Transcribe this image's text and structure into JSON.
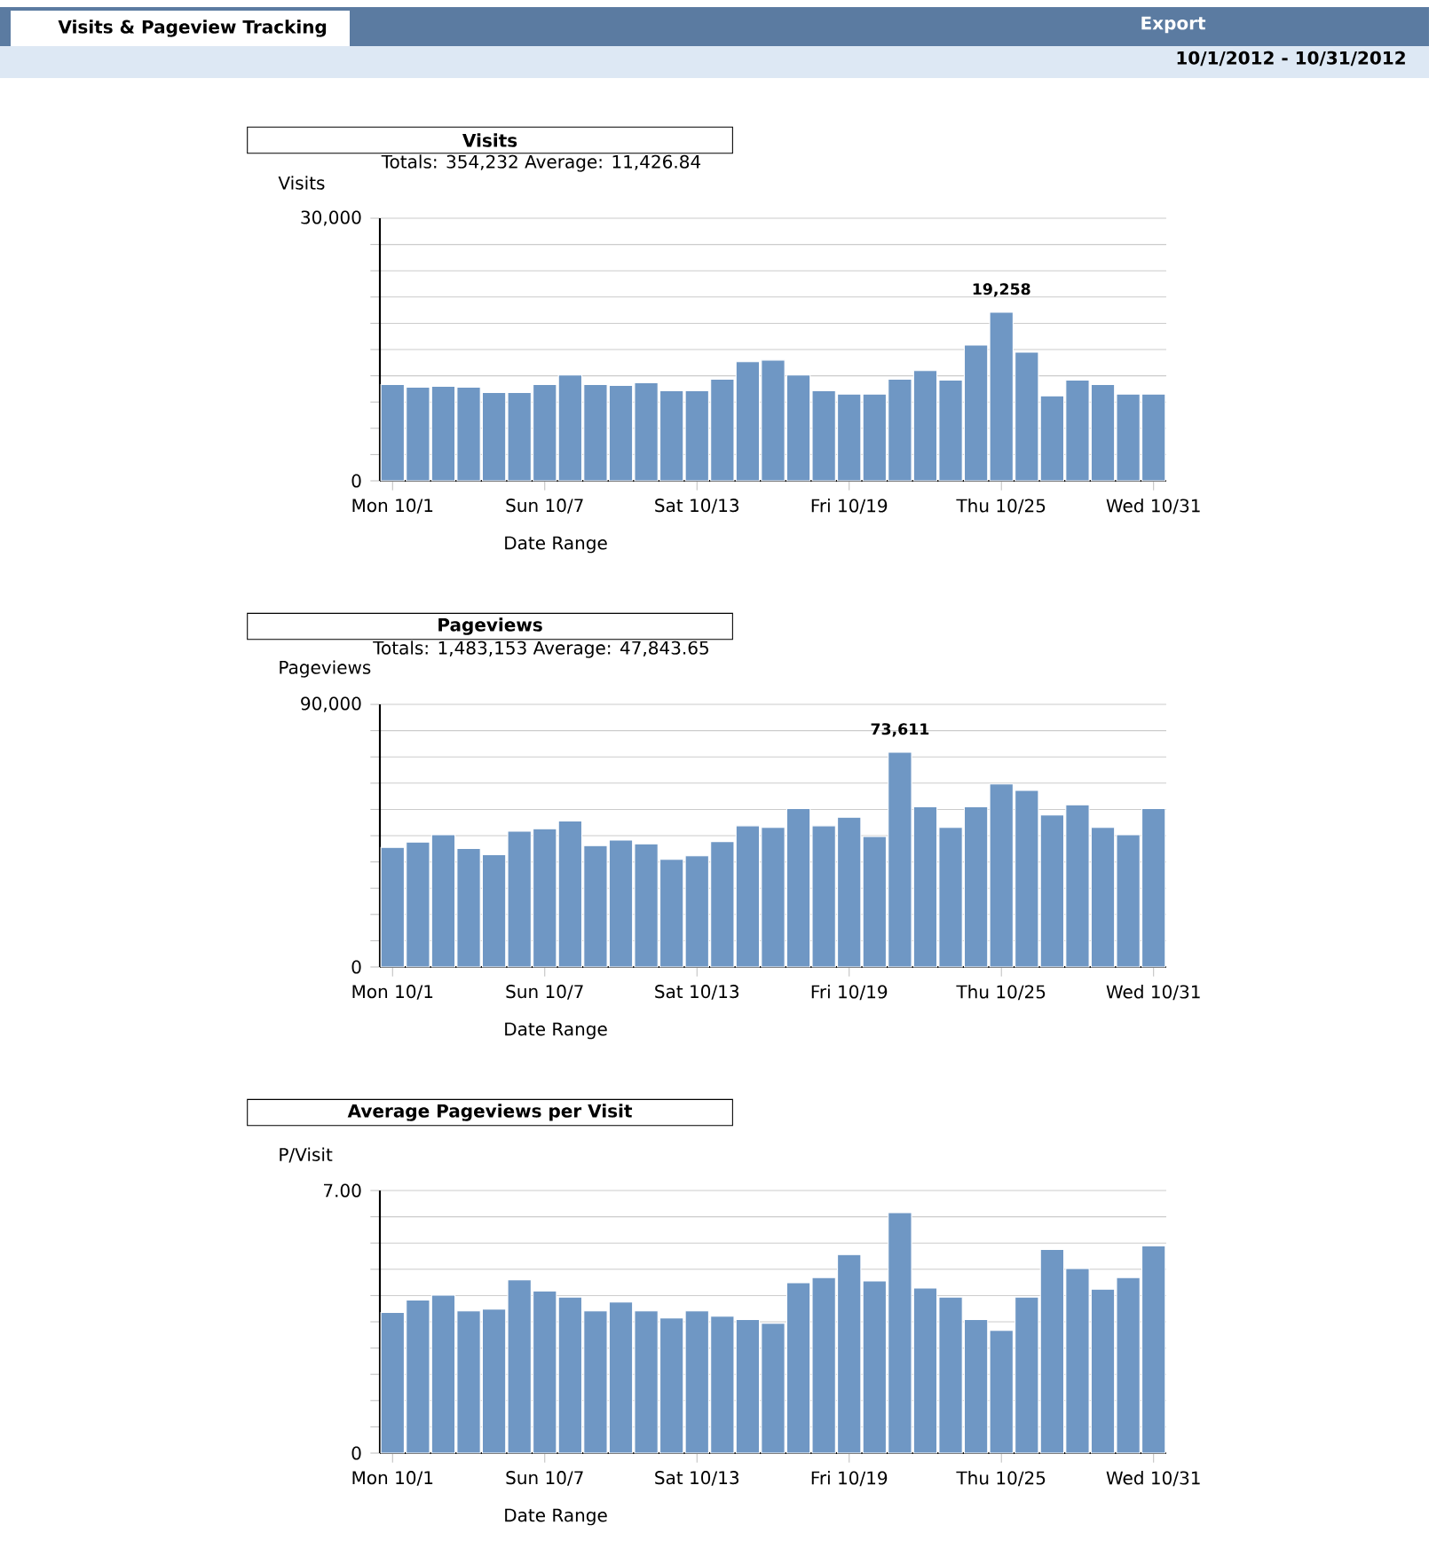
{
  "chart_data": [
    {
      "type": "other",
      "title": "Visits & Pageview Tracking",
      "annotations": [
        "Export",
        "10/1/2012 - 10/31/2012"
      ]
    },
    {
      "type": "bar",
      "title": "Visits",
      "subtitle": "Totals: 354,232   Average: 11,426.84",
      "ylabel": "Visits",
      "xlabel": "Date Range",
      "color": "#6f97c4",
      "grid": "y",
      "categories": [
        "Mon 10/1",
        null,
        null,
        null,
        null,
        null,
        "Sun 10/7",
        null,
        null,
        null,
        null,
        null,
        "Sat 10/13",
        null,
        null,
        null,
        null,
        null,
        "Fri 10/19",
        null,
        null,
        null,
        null,
        null,
        "Thu 10/25",
        null,
        null,
        null,
        null,
        null,
        "Wed 10/31"
      ],
      "values": [
        11000,
        10700,
        10800,
        10700,
        10100,
        10100,
        11000,
        12100,
        11000,
        10900,
        11200,
        10300,
        10300,
        11600,
        13600,
        13800,
        12100,
        10300,
        9900,
        9900,
        11600,
        12600,
        11500,
        15500,
        19258,
        14700,
        9700,
        11500,
        11000,
        9900,
        9900
      ],
      "value_labels": [
        null,
        null,
        null,
        null,
        null,
        null,
        null,
        null,
        null,
        null,
        null,
        null,
        null,
        null,
        null,
        null,
        null,
        null,
        null,
        null,
        null,
        null,
        null,
        null,
        "19,258",
        null,
        null,
        null,
        null,
        null,
        null
      ],
      "ylim": [
        0,
        30000
      ],
      "yticks": [
        0,
        {
          "value": 3000,
          "label": null
        },
        {
          "value": 6000,
          "label": null
        },
        {
          "value": 9000,
          "label": null
        },
        {
          "value": 12000,
          "label": null
        },
        {
          "value": 15000,
          "label": null
        },
        {
          "value": 18000,
          "label": null
        },
        {
          "value": 21000,
          "label": null
        },
        {
          "value": 24000,
          "label": null
        },
        {
          "value": 27000,
          "label": null
        },
        {
          "value": 30000,
          "label": "30,000"
        }
      ]
    },
    {
      "type": "bar",
      "title": "Pageviews",
      "subtitle": "Totals: 1,483,153   Average: 47,843.65",
      "ylabel": "Pageviews",
      "xlabel": "Date Range",
      "color": "#6f97c4",
      "grid": "y",
      "categories": [
        "Mon 10/1",
        null,
        null,
        null,
        null,
        null,
        "Sun 10/7",
        null,
        null,
        null,
        null,
        null,
        "Sat 10/13",
        null,
        null,
        null,
        null,
        null,
        "Fri 10/19",
        null,
        null,
        null,
        null,
        null,
        "Thu 10/25",
        null,
        null,
        null,
        null,
        null,
        "Wed 10/31"
      ],
      "values": [
        41000,
        42800,
        45300,
        40600,
        38500,
        46500,
        47400,
        50000,
        41600,
        43500,
        42200,
        36900,
        38100,
        43000,
        48400,
        47800,
        54300,
        48400,
        51300,
        44700,
        73611,
        54900,
        47800,
        54900,
        62700,
        60500,
        52100,
        55600,
        47800,
        45300,
        54300
      ],
      "value_labels": [
        null,
        null,
        null,
        null,
        null,
        null,
        null,
        null,
        null,
        null,
        null,
        null,
        null,
        null,
        null,
        null,
        null,
        null,
        null,
        null,
        "73,611",
        null,
        null,
        null,
        null,
        null,
        null,
        null,
        null,
        null,
        null
      ],
      "ylim": [
        0,
        90000
      ],
      "yticks": [
        0,
        {
          "value": 9000,
          "label": null
        },
        {
          "value": 18000,
          "label": null
        },
        {
          "value": 27000,
          "label": null
        },
        {
          "value": 36000,
          "label": null
        },
        {
          "value": 45000,
          "label": null
        },
        {
          "value": 54000,
          "label": null
        },
        {
          "value": 63000,
          "label": null
        },
        {
          "value": 72000,
          "label": null
        },
        {
          "value": 81000,
          "label": null
        },
        {
          "value": 90000,
          "label": "90,000"
        }
      ]
    },
    {
      "type": "bar",
      "title": "Average Pageviews per Visit",
      "ylabel": "P/Visit",
      "xlabel": "Date Range",
      "color": "#6f97c4",
      "grid": "y",
      "categories": [
        "Mon 10/1",
        null,
        null,
        null,
        null,
        null,
        "Sun 10/7",
        null,
        null,
        null,
        null,
        null,
        "Sat 10/13",
        null,
        null,
        null,
        null,
        null,
        "Fri 10/19",
        null,
        null,
        null,
        null,
        null,
        "Thu 10/25",
        null,
        null,
        null,
        null,
        null,
        "Wed 10/31"
      ],
      "values": [
        3.75,
        4.08,
        4.21,
        3.79,
        3.84,
        4.62,
        4.32,
        4.16,
        3.79,
        4.03,
        3.79,
        3.6,
        3.79,
        3.65,
        3.56,
        3.46,
        4.54,
        4.68,
        5.29,
        4.59,
        6.41,
        4.4,
        4.16,
        3.56,
        3.27,
        4.16,
        5.43,
        4.92,
        4.37,
        4.68,
        5.52
      ],
      "ylim": [
        0,
        7
      ],
      "yticks": [
        0,
        {
          "value": 0.7,
          "label": null
        },
        {
          "value": 1.4,
          "label": null
        },
        {
          "value": 2.1,
          "label": null
        },
        {
          "value": 2.8,
          "label": null
        },
        {
          "value": 3.5,
          "label": null
        },
        {
          "value": 4.2,
          "label": null
        },
        {
          "value": 4.9,
          "label": null
        },
        {
          "value": 5.6,
          "label": null
        },
        {
          "value": 6.3,
          "label": null
        },
        {
          "value": 7,
          "label": "7.00"
        }
      ]
    }
  ]
}
